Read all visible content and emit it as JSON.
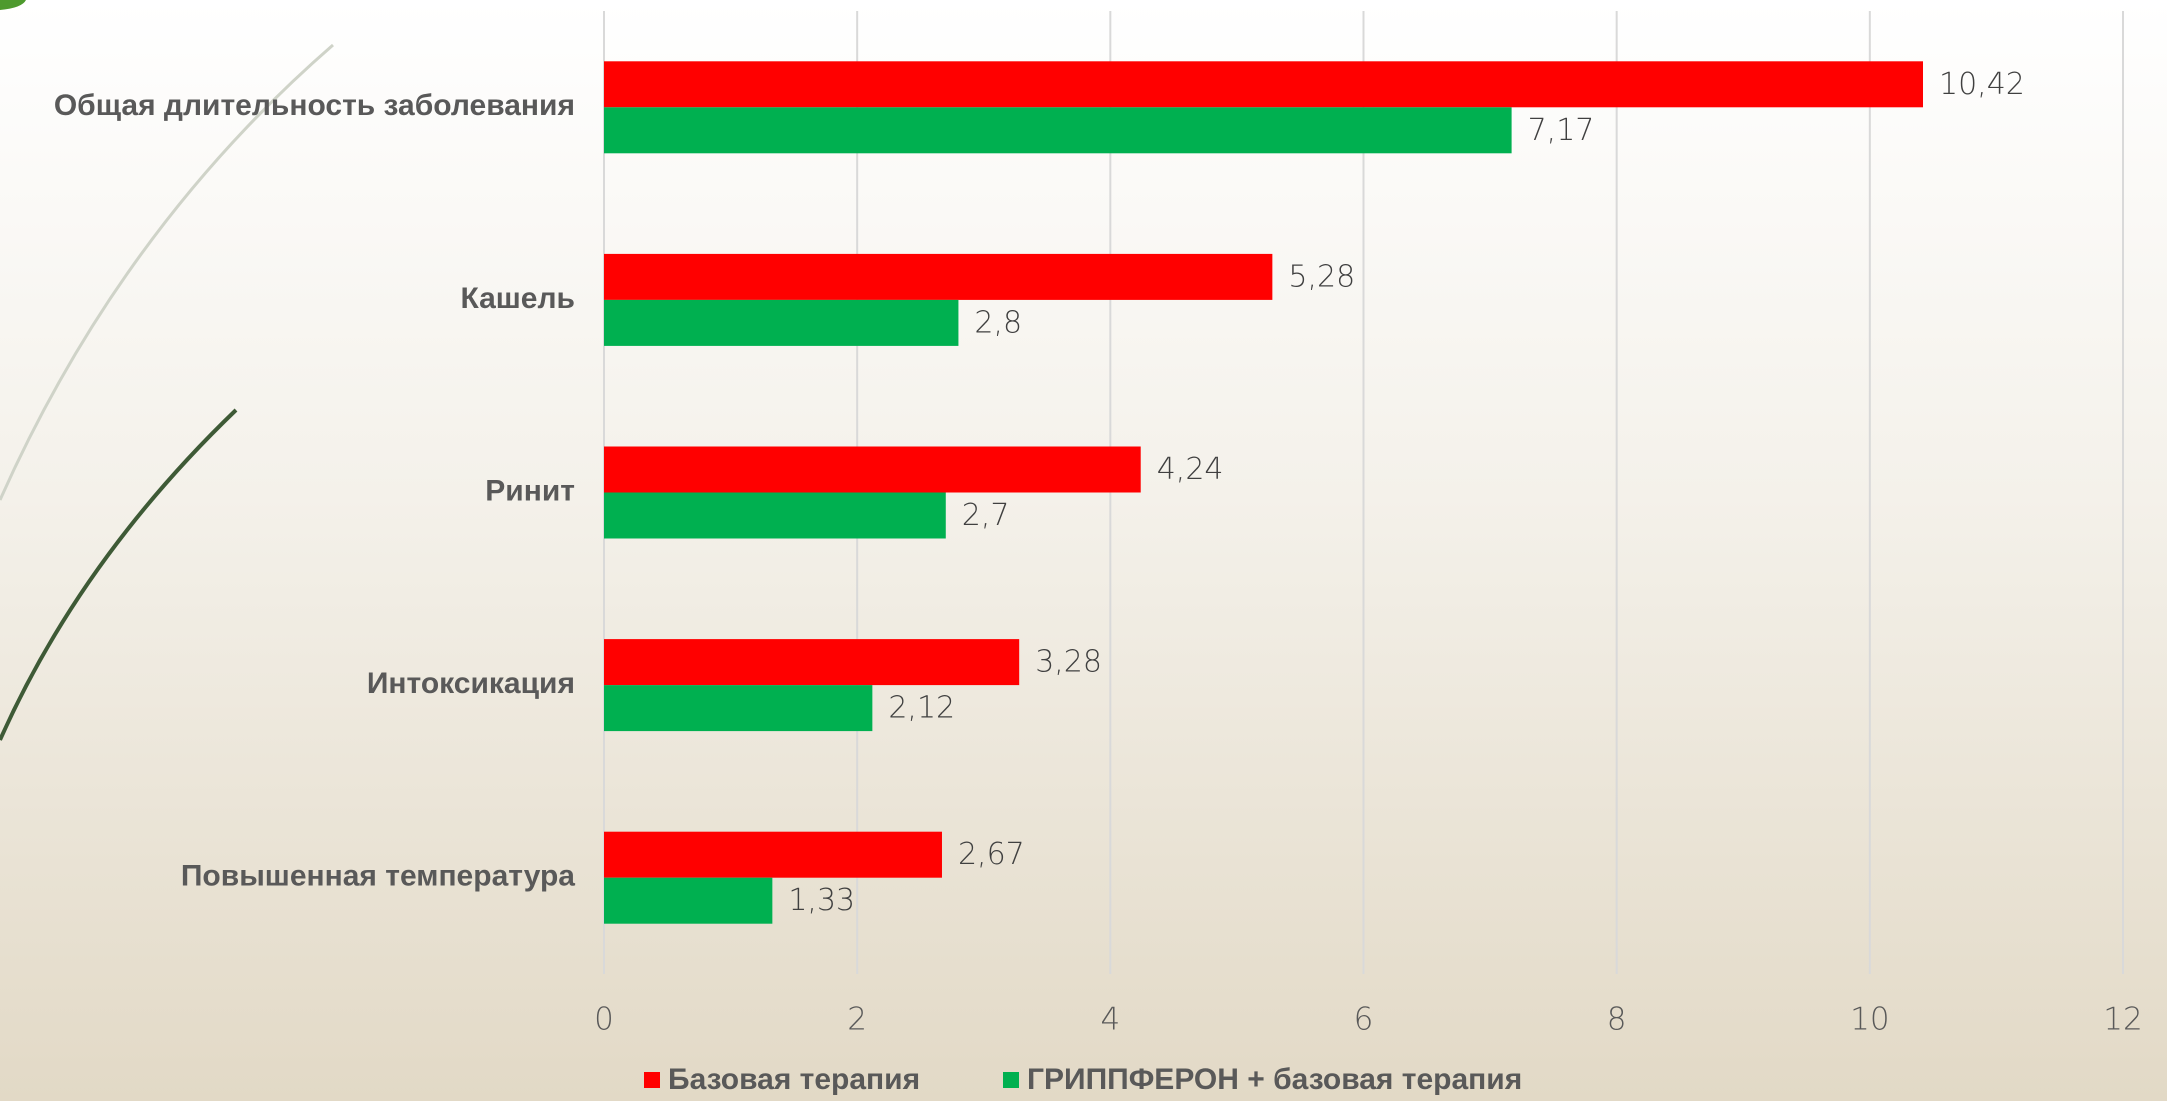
{
  "chart_data": {
    "type": "hbar",
    "categories": [
      "Общая длительность заболевания",
      "Кашель",
      "Ринит",
      "Интоксикация",
      "Повышенная температура"
    ],
    "series": [
      {
        "name": "Базовая терапия",
        "color": "#ff0000",
        "values": [
          10.42,
          5.28,
          4.24,
          3.28,
          2.67
        ],
        "value_labels": [
          "10,42",
          "5,28",
          "4,24",
          "3,28",
          "2,67"
        ]
      },
      {
        "name": "ГРИППФЕРОН + базовая терапия",
        "color": "#00b050",
        "values": [
          7.17,
          2.8,
          2.7,
          2.12,
          1.33
        ],
        "value_labels": [
          "7,17",
          "2,8",
          "2,7",
          "2,12",
          "1,33"
        ]
      }
    ],
    "xlim": [
      0,
      12
    ],
    "xticks": [
      0,
      2,
      4,
      6,
      8,
      10,
      12
    ],
    "grid": true,
    "legend": "bottom"
  }
}
